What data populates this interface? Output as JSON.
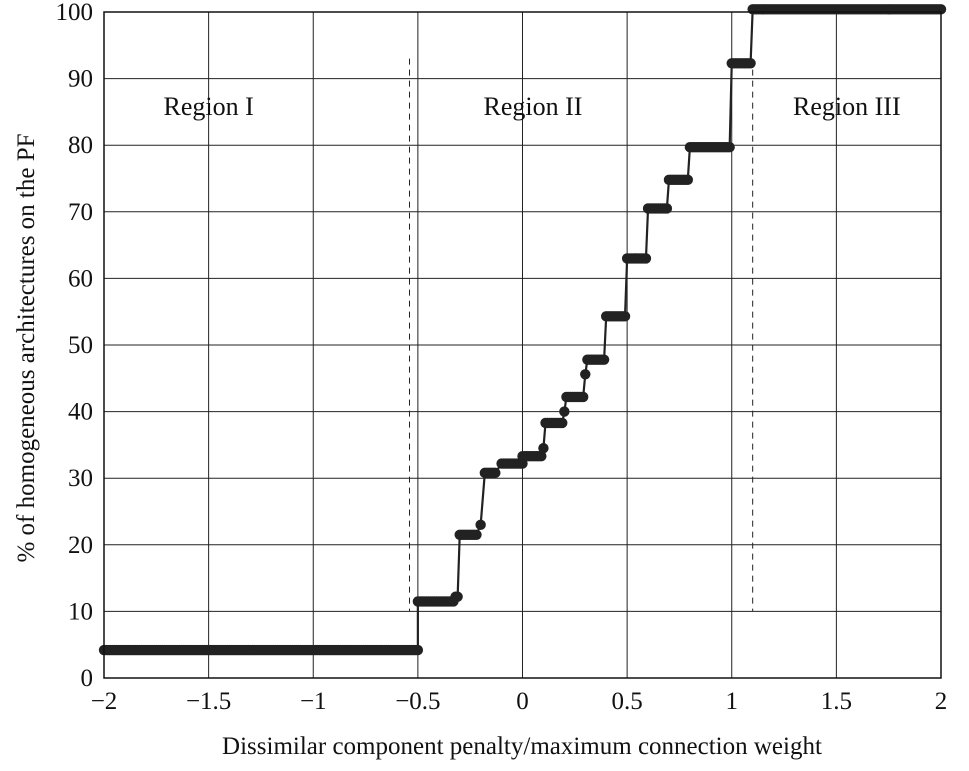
{
  "chart_data": {
    "type": "scatter",
    "title": "",
    "xlabel": "Dissimilar component penalty/maximum connection weight",
    "ylabel": "% of homogeneous architectures on the PF",
    "xlim": [
      -2,
      2
    ],
    "ylim": [
      0,
      100
    ],
    "grid": true,
    "x_ticks": [
      -2,
      -1.5,
      -1,
      -0.5,
      0,
      0.5,
      1,
      1.5,
      2
    ],
    "x_tick_labels": [
      "−2",
      "−1.5",
      "−1",
      "−0.5",
      "0",
      "0.5",
      "1",
      "1.5",
      "2"
    ],
    "y_ticks": [
      0,
      10,
      20,
      30,
      40,
      50,
      60,
      70,
      80,
      90,
      100
    ],
    "y_tick_labels": [
      "0",
      "10",
      "20",
      "30",
      "40",
      "50",
      "60",
      "70",
      "80",
      "90",
      "100"
    ],
    "regions": [
      {
        "label": "Region I",
        "x": -1.5
      },
      {
        "label": "Region II",
        "x": 0.05
      },
      {
        "label": "Region III",
        "x": 1.55
      }
    ],
    "region_boundaries": [
      -0.54,
      1.1
    ],
    "series": [
      {
        "style": "step-with-markers",
        "color": "#222222",
        "steps": [
          {
            "x0": -2.0,
            "x1": -0.5,
            "y": 4.2
          },
          {
            "x0": -0.5,
            "x1": -0.33,
            "y": 11.5
          },
          {
            "x0": -0.32,
            "x1": -0.31,
            "y": 12.2
          },
          {
            "x0": -0.3,
            "x1": -0.22,
            "y": 21.5
          },
          {
            "x0": -0.2,
            "x1": -0.2,
            "y": 23.0
          },
          {
            "x0": -0.18,
            "x1": -0.13,
            "y": 30.8
          },
          {
            "x0": -0.1,
            "x1": 0.0,
            "y": 32.2
          },
          {
            "x0": 0.0,
            "x1": 0.09,
            "y": 33.3
          },
          {
            "x0": 0.1,
            "x1": 0.1,
            "y": 34.5
          },
          {
            "x0": 0.11,
            "x1": 0.19,
            "y": 38.3
          },
          {
            "x0": 0.2,
            "x1": 0.2,
            "y": 40.0
          },
          {
            "x0": 0.21,
            "x1": 0.29,
            "y": 42.2
          },
          {
            "x0": 0.3,
            "x1": 0.3,
            "y": 45.6
          },
          {
            "x0": 0.31,
            "x1": 0.39,
            "y": 47.8
          },
          {
            "x0": 0.4,
            "x1": 0.49,
            "y": 54.3
          },
          {
            "x0": 0.5,
            "x1": 0.59,
            "y": 63.0
          },
          {
            "x0": 0.6,
            "x1": 0.69,
            "y": 70.5
          },
          {
            "x0": 0.7,
            "x1": 0.79,
            "y": 74.8
          },
          {
            "x0": 0.8,
            "x1": 0.99,
            "y": 79.7
          },
          {
            "x0": 1.0,
            "x1": 1.09,
            "y": 92.3
          },
          {
            "x0": 1.1,
            "x1": 2.0,
            "y": 100.4
          }
        ]
      }
    ]
  }
}
